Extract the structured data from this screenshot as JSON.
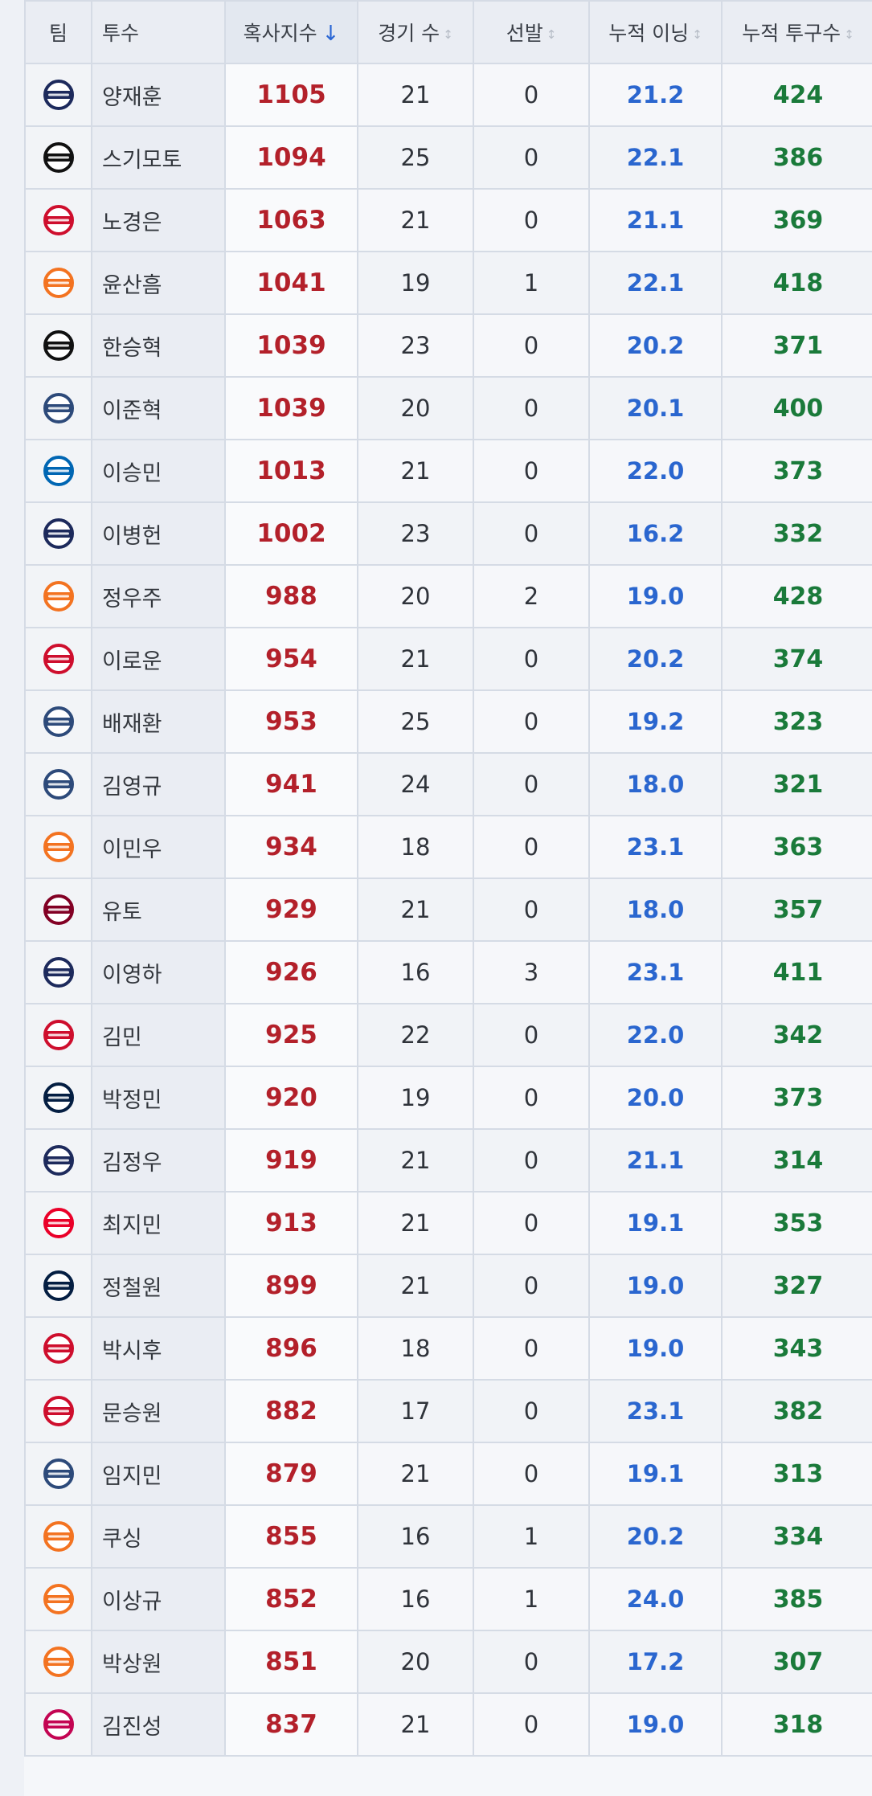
{
  "columns": {
    "team": "팀",
    "pitcher": "투수",
    "strikeout_index": "혹사지수",
    "games": "경기 수",
    "starts": "선발",
    "innings": "누적 이닝",
    "pitches": "누적 투구수"
  },
  "sort": {
    "column": "strikeout_index",
    "direction": "desc",
    "arrow": "↓",
    "inactive_indicator": "↕"
  },
  "rows": [
    {
      "team": "Bears",
      "name": "양재훈",
      "kk": "1105",
      "g": "21",
      "gs": "0",
      "ip": "21.2",
      "np": "424"
    },
    {
      "team": "KT Wiz",
      "name": "스기모토",
      "kk": "1094",
      "g": "25",
      "gs": "0",
      "ip": "22.1",
      "np": "386"
    },
    {
      "team": "Landers",
      "name": "노경은",
      "kk": "1063",
      "g": "21",
      "gs": "0",
      "ip": "21.1",
      "np": "369"
    },
    {
      "team": "Eagles",
      "name": "윤산흠",
      "kk": "1041",
      "g": "19",
      "gs": "1",
      "ip": "22.1",
      "np": "418"
    },
    {
      "team": "KT Wiz",
      "name": "한승혁",
      "kk": "1039",
      "g": "23",
      "gs": "0",
      "ip": "20.2",
      "np": "371"
    },
    {
      "team": "Dinos",
      "name": "이준혁",
      "kk": "1039",
      "g": "20",
      "gs": "0",
      "ip": "20.1",
      "np": "400"
    },
    {
      "team": "Lions",
      "name": "이승민",
      "kk": "1013",
      "g": "21",
      "gs": "0",
      "ip": "22.0",
      "np": "373"
    },
    {
      "team": "Bears",
      "name": "이병헌",
      "kk": "1002",
      "g": "23",
      "gs": "0",
      "ip": "16.2",
      "np": "332"
    },
    {
      "team": "Eagles",
      "name": "정우주",
      "kk": "988",
      "g": "20",
      "gs": "2",
      "ip": "19.0",
      "np": "428"
    },
    {
      "team": "Landers",
      "name": "이로운",
      "kk": "954",
      "g": "21",
      "gs": "0",
      "ip": "20.2",
      "np": "374"
    },
    {
      "team": "Dinos",
      "name": "배재환",
      "kk": "953",
      "g": "25",
      "gs": "0",
      "ip": "19.2",
      "np": "323"
    },
    {
      "team": "Dinos",
      "name": "김영규",
      "kk": "941",
      "g": "24",
      "gs": "0",
      "ip": "18.0",
      "np": "321"
    },
    {
      "team": "Eagles",
      "name": "이민우",
      "kk": "934",
      "g": "18",
      "gs": "0",
      "ip": "23.1",
      "np": "363"
    },
    {
      "team": "Kiwoom",
      "name": "유토",
      "kk": "929",
      "g": "21",
      "gs": "0",
      "ip": "18.0",
      "np": "357"
    },
    {
      "team": "Bears",
      "name": "이영하",
      "kk": "926",
      "g": "16",
      "gs": "3",
      "ip": "23.1",
      "np": "411"
    },
    {
      "team": "Landers",
      "name": "김민",
      "kk": "925",
      "g": "22",
      "gs": "0",
      "ip": "22.0",
      "np": "342"
    },
    {
      "team": "Giants",
      "name": "박정민",
      "kk": "920",
      "g": "19",
      "gs": "0",
      "ip": "20.0",
      "np": "373"
    },
    {
      "team": "Bears",
      "name": "김정우",
      "kk": "919",
      "g": "21",
      "gs": "0",
      "ip": "21.1",
      "np": "314"
    },
    {
      "team": "Tigers",
      "name": "최지민",
      "kk": "913",
      "g": "21",
      "gs": "0",
      "ip": "19.1",
      "np": "353"
    },
    {
      "team": "Giants",
      "name": "정철원",
      "kk": "899",
      "g": "21",
      "gs": "0",
      "ip": "19.0",
      "np": "327"
    },
    {
      "team": "Landers",
      "name": "박시후",
      "kk": "896",
      "g": "18",
      "gs": "0",
      "ip": "19.0",
      "np": "343"
    },
    {
      "team": "Landers",
      "name": "문승원",
      "kk": "882",
      "g": "17",
      "gs": "0",
      "ip": "23.1",
      "np": "382"
    },
    {
      "team": "Dinos",
      "name": "임지민",
      "kk": "879",
      "g": "21",
      "gs": "0",
      "ip": "19.1",
      "np": "313"
    },
    {
      "team": "Eagles",
      "name": "쿠싱",
      "kk": "855",
      "g": "16",
      "gs": "1",
      "ip": "20.2",
      "np": "334"
    },
    {
      "team": "Eagles",
      "name": "이상규",
      "kk": "852",
      "g": "16",
      "gs": "1",
      "ip": "24.0",
      "np": "385"
    },
    {
      "team": "Eagles",
      "name": "박상원",
      "kk": "851",
      "g": "20",
      "gs": "0",
      "ip": "17.2",
      "np": "307"
    },
    {
      "team": "Twins",
      "name": "김진성",
      "kk": "837",
      "g": "21",
      "gs": "0",
      "ip": "19.0",
      "np": "318"
    }
  ],
  "team_logo_colors": {
    "Bears": "#1d2a5c",
    "KT Wiz": "#111111",
    "Landers": "#ce0e2d",
    "Eagles": "#f37321",
    "Dinos": "#2d4a7a",
    "Lions": "#0066b3",
    "Kiwoom": "#820024",
    "Giants": "#041e42",
    "Tigers": "#ea0029",
    "Twins": "#c30452"
  }
}
